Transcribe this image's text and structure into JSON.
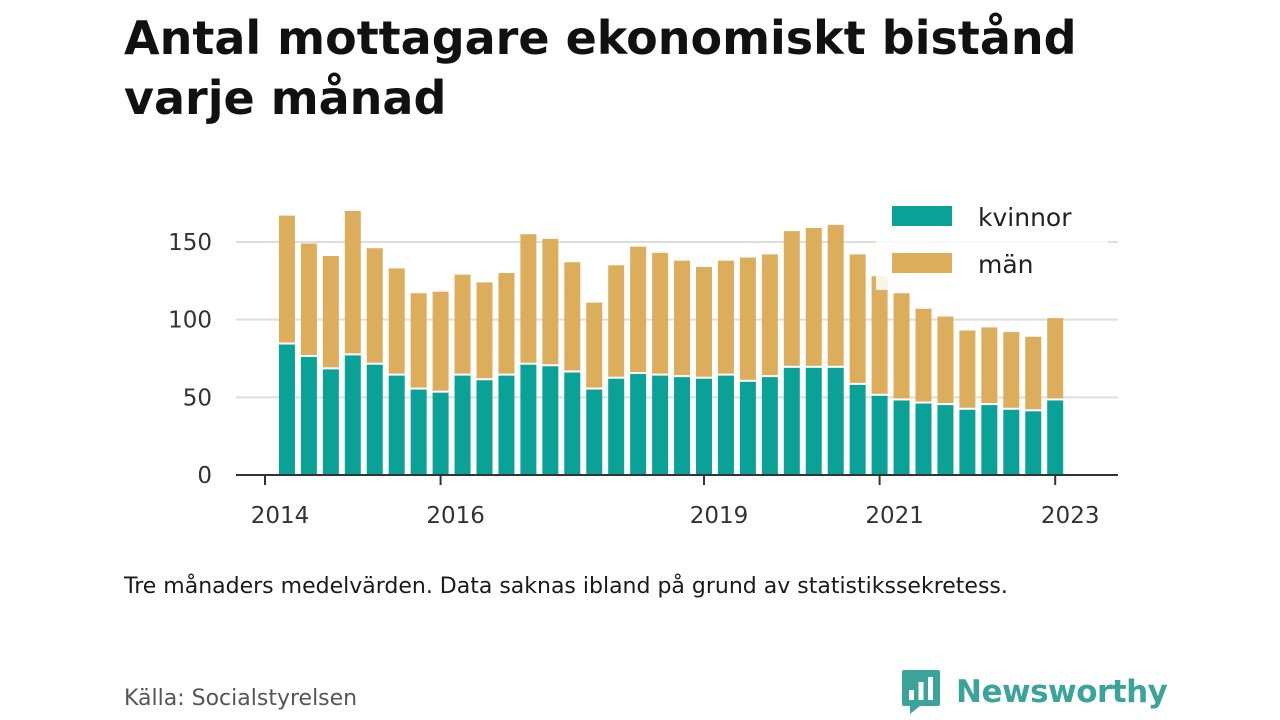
{
  "title": "Antal mottagare ekonomiskt bistånd varje månad",
  "note": "Tre månaders medelvärden. Data saknas ibland på grund av statistikssekretess.",
  "source": "Källa: Socialstyrelsen",
  "brand": {
    "name": "Newsworthy",
    "icon": "newsworthy-logo-icon",
    "color": "#3aa39a"
  },
  "chart_data": {
    "type": "bar",
    "stacked": true,
    "x_start": 2014.25,
    "x_step": 0.25,
    "xlim": [
      2014,
      2023.25
    ],
    "ylim": [
      0,
      170
    ],
    "yticks": [
      0,
      50,
      100,
      150
    ],
    "xticks": [
      2014,
      2016,
      2019,
      2021,
      2023
    ],
    "grid": true,
    "legend_position": "top-right",
    "series": [
      {
        "name": "kvinnor",
        "color": "#0aa296",
        "values": [
          84,
          76,
          68,
          77,
          71,
          64,
          55,
          53,
          64,
          61,
          64,
          71,
          70,
          66,
          55,
          62,
          65,
          64,
          63,
          62,
          64,
          60,
          63,
          69,
          69,
          69,
          58,
          51,
          48,
          46,
          45,
          42,
          45,
          42,
          41,
          48
        ]
      },
      {
        "name": "män",
        "color": "#dcae5c",
        "values": [
          83,
          73,
          73,
          93,
          75,
          69,
          62,
          65,
          65,
          63,
          66,
          84,
          82,
          71,
          56,
          73,
          82,
          79,
          75,
          72,
          74,
          80,
          79,
          88,
          90,
          92,
          84,
          77,
          69,
          61,
          57,
          51,
          50,
          50,
          48,
          53
        ]
      }
    ]
  }
}
